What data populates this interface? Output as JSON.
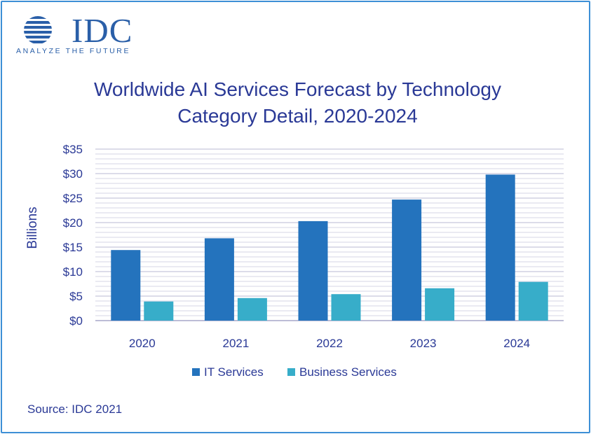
{
  "logo": {
    "brand": "IDC",
    "tagline": "ANALYZE THE FUTURE"
  },
  "colors": {
    "it_services": "#2473bd",
    "business_services": "#37adc9",
    "text": "#2a3996",
    "grid": "#c6c6dc",
    "frame": "#3d8fd6"
  },
  "source": "Source: IDC 2021",
  "chart_data": {
    "type": "bar",
    "title": [
      "Worldwide AI Services Forecast by Technology",
      "Category Detail, 2020-2024"
    ],
    "ylabel": "Billions",
    "xlabel": "",
    "ylim": [
      0,
      35
    ],
    "yticks": [
      {
        "value": 0,
        "label": "$0"
      },
      {
        "value": 5,
        "label": "$5"
      },
      {
        "value": 10,
        "label": "$10"
      },
      {
        "value": 15,
        "label": "$15"
      },
      {
        "value": 20,
        "label": "$20"
      },
      {
        "value": 25,
        "label": "$25"
      },
      {
        "value": 30,
        "label": "$30"
      },
      {
        "value": 35,
        "label": "$35"
      }
    ],
    "categories": [
      "2020",
      "2021",
      "2022",
      "2023",
      "2024"
    ],
    "series": [
      {
        "name": "IT Services",
        "color": "#2473bd",
        "values": [
          14.4,
          16.8,
          20.3,
          24.7,
          29.8
        ]
      },
      {
        "name": "Business Services",
        "color": "#37adc9",
        "values": [
          3.9,
          4.6,
          5.4,
          6.6,
          7.9
        ]
      }
    ],
    "grid": true,
    "legend": "bottom"
  }
}
